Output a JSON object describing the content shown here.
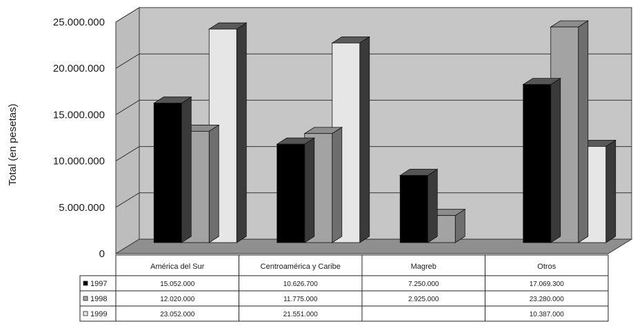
{
  "chart_data": {
    "type": "bar",
    "ylabel": "Total (en pesetas)",
    "ylim": [
      0,
      25000000
    ],
    "yticks": [
      "0",
      "5.000.000",
      "10.000.000",
      "15.000.000",
      "20.000.000",
      "25.000.000"
    ],
    "ytick_values": [
      0,
      5000000,
      10000000,
      15000000,
      20000000,
      25000000
    ],
    "grid": true,
    "three_d": true,
    "legend_placement": "data-table-left",
    "categories": [
      "América del Sur",
      "Centroamérica y Caribe",
      "Magreb",
      "Otros"
    ],
    "series": [
      {
        "name": "1997",
        "color": "#000000",
        "side_color": "#3a3a3a",
        "top_color": "#555555",
        "values": [
          15052000,
          10626700,
          7250000,
          17069300
        ],
        "labels": [
          "15.052.000",
          "10.626.700",
          "7.250.000",
          "17.069.300"
        ]
      },
      {
        "name": "1998",
        "color": "#a3a3a3",
        "side_color": "#6e6e6e",
        "top_color": "#8c8c8c",
        "values": [
          12020000,
          11775000,
          2925000,
          23280000
        ],
        "labels": [
          "12.020.000",
          "11.775.000",
          "2.925.000",
          "23.280.000"
        ]
      },
      {
        "name": "1999",
        "color": "#e6e6e6",
        "side_color": "#3a3a3a",
        "top_color": "#5a5a5a",
        "values": [
          23052000,
          21551000,
          null,
          10387000
        ],
        "labels": [
          "23.052.000",
          "21.551.000",
          "",
          "10.387.000"
        ]
      }
    ]
  }
}
